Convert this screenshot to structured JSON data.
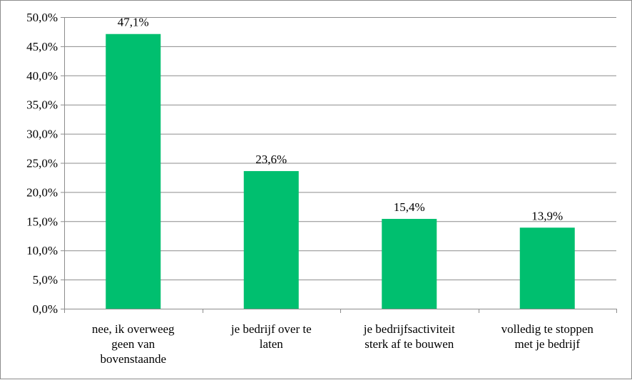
{
  "chart_data": {
    "type": "bar",
    "categories": [
      [
        "nee, ik overweeg",
        "geen van",
        "bovenstaande"
      ],
      [
        "je bedrijf over te",
        "laten"
      ],
      [
        "je bedrijfsactiviteit",
        "sterk af te bouwen"
      ],
      [
        "volledig te stoppen",
        "met je bedrijf"
      ]
    ],
    "values": [
      47.1,
      23.6,
      15.4,
      13.9
    ],
    "data_labels": [
      "47,1%",
      "23,6%",
      "15,4%",
      "13,9%"
    ],
    "ylim": [
      0,
      50
    ],
    "y_ticks": [
      0,
      5,
      10,
      15,
      20,
      25,
      30,
      35,
      40,
      45,
      50
    ],
    "y_tick_labels": [
      "0,0%",
      "5,0%",
      "10,0%",
      "15,0%",
      "20,0%",
      "25,0%",
      "30,0%",
      "35,0%",
      "40,0%",
      "45,0%",
      "50,0%"
    ],
    "title": "",
    "xlabel": "",
    "ylabel": "",
    "grid": true,
    "legend": "none",
    "colors": {
      "bar": "#00bf6f",
      "grid": "#8c8c8c",
      "axis": "#8c8c8c"
    }
  }
}
